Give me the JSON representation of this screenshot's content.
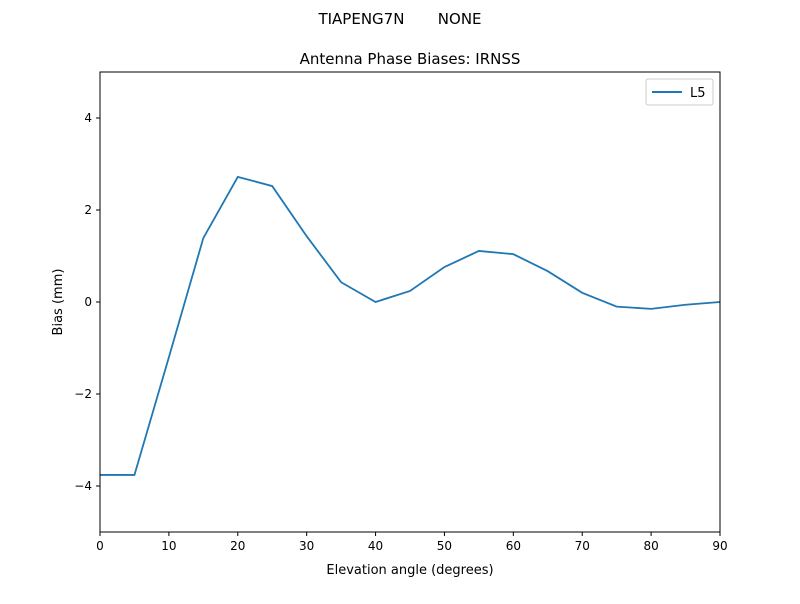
{
  "chart_data": {
    "type": "line",
    "suptitle": "TIAPENG7N       NONE",
    "title": "Antenna Phase Biases: IRNSS",
    "xlabel": "Elevation angle (degrees)",
    "ylabel": "Bias (mm)",
    "xlim": [
      0,
      90
    ],
    "ylim": [
      -5,
      5
    ],
    "xticks": [
      0,
      10,
      20,
      30,
      40,
      50,
      60,
      70,
      80,
      90
    ],
    "yticks": [
      -4,
      -2,
      0,
      2,
      4
    ],
    "ytick_labels": [
      "−4",
      "−2",
      "0",
      "2",
      "4"
    ],
    "grid": false,
    "legend_position": "top-right",
    "x": [
      0,
      5,
      10,
      15,
      20,
      25,
      30,
      35,
      40,
      45,
      50,
      55,
      60,
      65,
      70,
      75,
      80,
      85,
      90
    ],
    "series": [
      {
        "name": "L5",
        "color": "#1f77b4",
        "values": [
          -3.76,
          -3.76,
          -1.2,
          1.39,
          2.72,
          2.52,
          1.43,
          0.43,
          0.0,
          0.24,
          0.76,
          1.11,
          1.04,
          0.67,
          0.2,
          -0.1,
          -0.15,
          -0.06,
          0.0
        ]
      }
    ]
  }
}
